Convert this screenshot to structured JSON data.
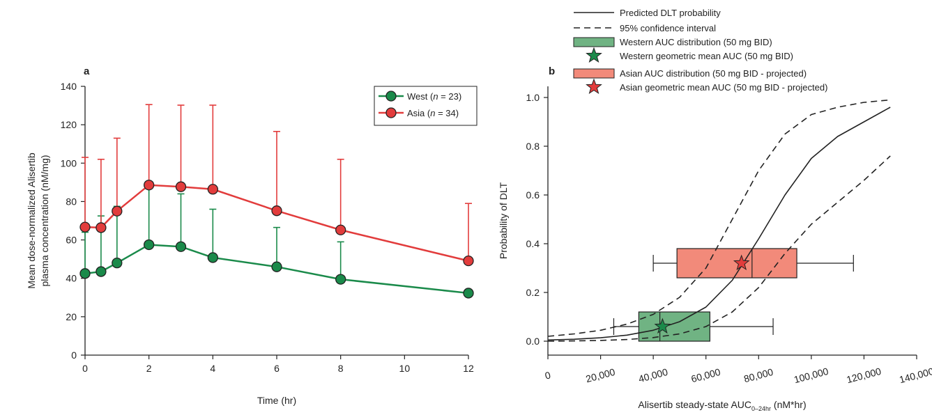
{
  "colors": {
    "west": "#1a8a4a",
    "asia": "#e23c3c",
    "west_fill": "#70b383",
    "asia_fill": "#f28a7a",
    "axis": "#222222"
  },
  "chart_data": [
    {
      "panel": "a",
      "type": "line",
      "xlabel": "Time (hr)",
      "ylabel_lines": [
        "Mean dose-normalized Alisertib",
        "plasma concentration (nM/mg)"
      ],
      "xlim": [
        0,
        12
      ],
      "ylim": [
        0,
        140
      ],
      "xticks": [
        0,
        2,
        4,
        6,
        8,
        10,
        12
      ],
      "yticks": [
        0,
        20,
        40,
        60,
        80,
        100,
        120,
        140
      ],
      "grid": false,
      "legend_position": "top-right",
      "x": [
        0,
        0.5,
        1,
        2,
        3,
        4,
        6,
        8,
        12
      ],
      "series": [
        {
          "key": "west",
          "legend_prefix": "West (",
          "legend_n": "n",
          "legend_suffix": " = 23)",
          "values": [
            42.5,
            43.5,
            48,
            57.5,
            56.5,
            50.8,
            46,
            39.5,
            32.3
          ],
          "error_upper": [
            64,
            72.5,
            77.5,
            88,
            84,
            76,
            66.5,
            59,
            32.3
          ]
        },
        {
          "key": "asia",
          "legend_prefix": "Asia (",
          "legend_n": "n",
          "legend_suffix": " = 34)",
          "values": [
            66.7,
            66.4,
            75,
            88.6,
            87.7,
            86.4,
            75.2,
            65.2,
            49.1
          ],
          "error_upper": [
            103,
            102,
            113,
            130.5,
            130.2,
            130.2,
            116.5,
            102,
            79
          ]
        }
      ]
    },
    {
      "panel": "b",
      "type": "line",
      "xlabel_main": "Alisertib steady-state AUC",
      "xlabel_sub": "0–24hr",
      "xlabel_unit": " (nM*hr)",
      "ylabel": "Probability of DLT",
      "xlim": [
        0,
        140000
      ],
      "ylim": [
        0,
        1.0
      ],
      "xticks": [
        0,
        20000,
        40000,
        60000,
        80000,
        100000,
        120000,
        140000
      ],
      "xtick_labels": [
        "0",
        "20,000",
        "40,000",
        "60,000",
        "80,000",
        "100,000",
        "120,000",
        "140,000"
      ],
      "yticks": [
        0,
        0.2,
        0.4,
        0.6,
        0.8,
        1.0
      ],
      "ytick_labels": [
        "0.0",
        "0.2",
        "0.4",
        "0.6",
        "0.8",
        "1.0"
      ],
      "grid": false,
      "legend_position": "top",
      "legend": [
        "Predicted DLT probability",
        "95% confidence interval",
        "Western AUC distribution (50 mg BID)",
        "Western geometric mean AUC (50 mg BID)",
        "Asian AUC distribution (50 mg BID - projected)",
        "Asian geometric mean AUC (50 mg BID - projected)"
      ],
      "predicted_curve": {
        "x": [
          0,
          10000,
          20000,
          30000,
          40000,
          50000,
          60000,
          70000,
          80000,
          90000,
          100000,
          110000,
          120000,
          130000
        ],
        "y": [
          0.005,
          0.008,
          0.014,
          0.025,
          0.045,
          0.08,
          0.14,
          0.25,
          0.42,
          0.6,
          0.75,
          0.84,
          0.9,
          0.96
        ]
      },
      "ci_upper": {
        "x": [
          0,
          10000,
          20000,
          30000,
          40000,
          50000,
          60000,
          70000,
          80000,
          90000,
          100000,
          110000,
          120000,
          130000
        ],
        "y": [
          0.02,
          0.03,
          0.045,
          0.07,
          0.11,
          0.18,
          0.3,
          0.5,
          0.7,
          0.85,
          0.93,
          0.96,
          0.98,
          0.99
        ]
      },
      "ci_lower": {
        "x": [
          0,
          10000,
          20000,
          30000,
          40000,
          50000,
          60000,
          70000,
          80000,
          90000,
          100000,
          110000,
          120000,
          130000
        ],
        "y": [
          0,
          0.001,
          0.003,
          0.007,
          0.015,
          0.03,
          0.06,
          0.12,
          0.22,
          0.36,
          0.48,
          0.57,
          0.66,
          0.76
        ]
      },
      "boxes": [
        {
          "key": "west",
          "y_center": 0.06,
          "whisker_low": 25000,
          "q1": 34500,
          "median": 42500,
          "q3": 61500,
          "whisker_high": 85500,
          "geomean": 43500
        },
        {
          "key": "asia",
          "y_center": 0.32,
          "whisker_low": 40000,
          "q1": 49000,
          "median": 77500,
          "q3": 94500,
          "whisker_high": 116000,
          "geomean": 73500
        }
      ]
    }
  ]
}
